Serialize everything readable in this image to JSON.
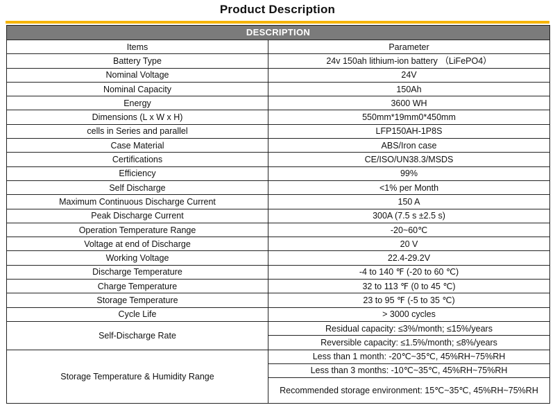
{
  "page": {
    "title": "Product Description"
  },
  "table": {
    "section_header": "DESCRIPTION",
    "col_items": "Items",
    "col_parameter": "Parameter",
    "rows": [
      {
        "item": "Battery Type",
        "value": "24v 150ah lithium-ion battery （LiFePO4）"
      },
      {
        "item": "Nominal Voltage",
        "value": "24V"
      },
      {
        "item": "Nominal Capacity",
        "value": "150Ah"
      },
      {
        "item": "Energy",
        "value": "3600 WH"
      },
      {
        "item": "Dimensions (L x W x H)",
        "value": "550mm*19mm0*450mm"
      },
      {
        "item": "cells in Series and parallel",
        "value": "LFP150AH-1P8S"
      },
      {
        "item": "Case Material",
        "value": "ABS/Iron case"
      },
      {
        "item": "Certifications",
        "value": "CE/ISO/UN38.3/MSDS"
      },
      {
        "item": "Efficiency",
        "value": "99%"
      },
      {
        "item": "Self Discharge",
        "value": "<1% per Month"
      },
      {
        "item": "Maximum Continuous Discharge Current",
        "value": "150 A"
      },
      {
        "item": "Peak Discharge Current",
        "value": "300A (7.5 s ±2.5 s)"
      },
      {
        "item": "Operation Temperature Range",
        "value": "-20~60℃"
      },
      {
        "item": "Voltage at end of Discharge",
        "value": "20 V"
      },
      {
        "item": "Working Voltage",
        "value": "22.4-29.2V"
      },
      {
        "item": "Discharge Temperature",
        "value": "-4 to 140 ℉ (-20 to 60 ℃)"
      },
      {
        "item": "Charge Temperature",
        "value": "32 to 113 ℉ (0 to 45 ℃)"
      },
      {
        "item": "Storage Temperature",
        "value": "23 to 95 ℉ (-5 to 35 ℃)"
      },
      {
        "item": "Cycle Life",
        "value": "> 3000 cycles"
      }
    ],
    "self_discharge_rate": {
      "item": "Self-Discharge Rate",
      "values": [
        "Residual capacity: ≤3%/month; ≤15%/years",
        "Reversible capacity: ≤1.5%/month; ≤8%/years"
      ]
    },
    "storage_range": {
      "item": "Storage Temperature & Humidity Range",
      "values": [
        "Less than 1 month: -20℃~35℃, 45%RH~75%RH",
        "Less than 3 months: -10℃~35℃, 45%RH~75%RH",
        "Recommended storage environment: 15℃~35℃, 45%RH~75%RH"
      ]
    }
  }
}
